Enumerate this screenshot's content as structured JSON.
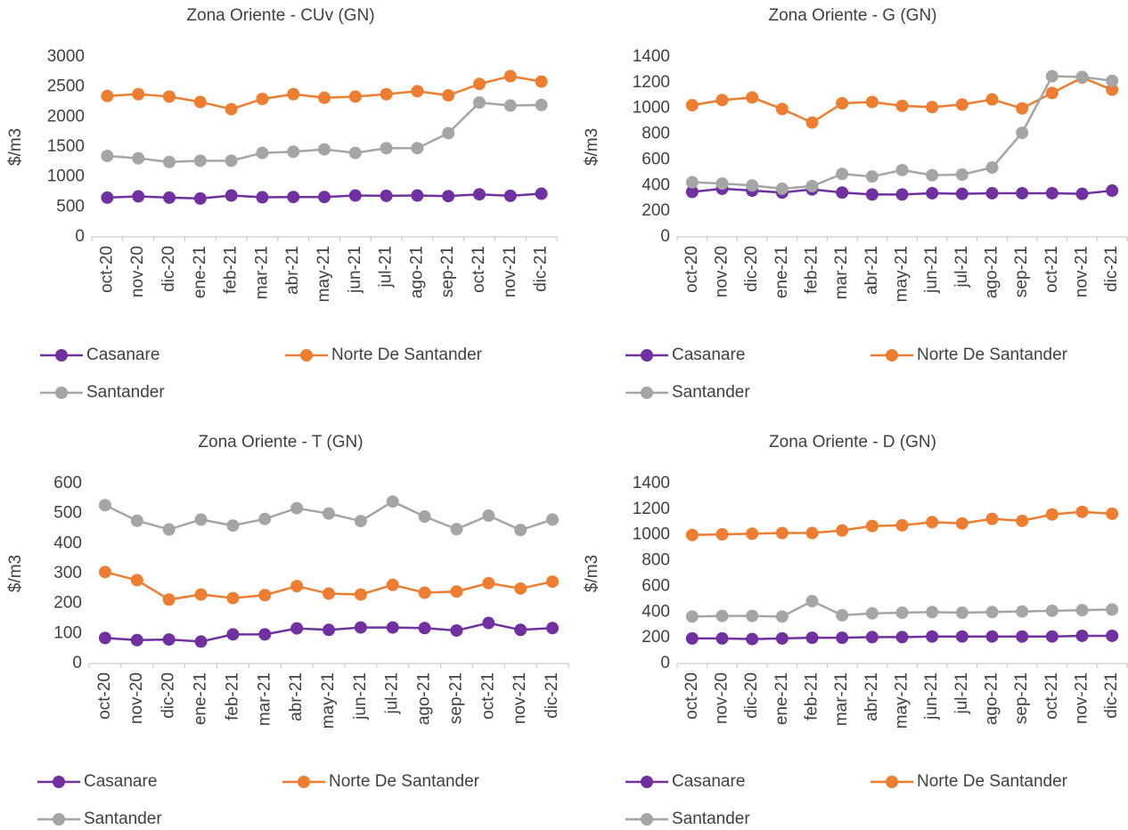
{
  "chart_data": [
    {
      "type": "line",
      "title": "Zona Oriente - CUv (GN)",
      "y_label": "$/m3",
      "categories": [
        "oct-20",
        "nov-20",
        "dic-20",
        "ene-21",
        "feb-21",
        "mar-21",
        "abr-21",
        "may-21",
        "jun-21",
        "jul-21",
        "ago-21",
        "sep-21",
        "oct-21",
        "nov-21",
        "dic-21"
      ],
      "ylim": [
        0,
        3000
      ],
      "yticks": [
        0,
        500,
        1000,
        1500,
        2000,
        2500,
        3000
      ],
      "grid": false,
      "legend": "bottom",
      "series": [
        {
          "name": "Casanare",
          "color": "#7030a0",
          "values": [
            655,
            675,
            655,
            640,
            690,
            660,
            665,
            665,
            690,
            685,
            690,
            680,
            710,
            685,
            720
          ]
        },
        {
          "name": "Norte De Santander",
          "color": "#ed7d31",
          "values": [
            2350,
            2380,
            2340,
            2250,
            2130,
            2300,
            2380,
            2320,
            2340,
            2380,
            2430,
            2360,
            2550,
            2680,
            2590
          ]
        },
        {
          "name": "Santander",
          "color": "#a5a5a5",
          "values": [
            1350,
            1310,
            1250,
            1270,
            1270,
            1400,
            1420,
            1460,
            1400,
            1480,
            1480,
            1730,
            2240,
            2190,
            2200
          ]
        }
      ]
    },
    {
      "type": "line",
      "title": "Zona Oriente - G (GN)",
      "y_label": "$/m3",
      "categories": [
        "oct-20",
        "nov-20",
        "dic-20",
        "ene-21",
        "feb-21",
        "mar-21",
        "abr-21",
        "may-21",
        "jun-21",
        "jul-21",
        "ago-21",
        "sep-21",
        "oct-21",
        "nov-21",
        "dic-21"
      ],
      "ylim": [
        0,
        1400
      ],
      "yticks": [
        0,
        200,
        400,
        600,
        800,
        1000,
        1200,
        1400
      ],
      "grid": false,
      "legend": "bottom",
      "series": [
        {
          "name": "Casanare",
          "color": "#7030a0",
          "values": [
            350,
            375,
            360,
            345,
            370,
            345,
            330,
            330,
            340,
            335,
            340,
            340,
            340,
            335,
            360
          ]
        },
        {
          "name": "Norte De Santander",
          "color": "#ed7d31",
          "values": [
            1025,
            1065,
            1085,
            995,
            890,
            1040,
            1050,
            1020,
            1010,
            1030,
            1070,
            1000,
            1120,
            1240,
            1145
          ]
        },
        {
          "name": "Santander",
          "color": "#a5a5a5",
          "values": [
            425,
            415,
            400,
            375,
            395,
            490,
            470,
            520,
            480,
            485,
            540,
            810,
            1250,
            1245,
            1215
          ]
        }
      ]
    },
    {
      "type": "line",
      "title": "Zona Oriente - T (GN)",
      "y_label": "$/m3",
      "categories": [
        "oct-20",
        "nov-20",
        "dic-20",
        "ene-21",
        "feb-21",
        "mar-21",
        "abr-21",
        "may-21",
        "jun-21",
        "jul-21",
        "ago-21",
        "sep-21",
        "oct-21",
        "nov-21",
        "dic-21"
      ],
      "ylim": [
        0,
        600
      ],
      "yticks": [
        0,
        100,
        200,
        300,
        400,
        500,
        600
      ],
      "grid": false,
      "legend": "bottom",
      "series": [
        {
          "name": "Casanare",
          "color": "#7030a0",
          "values": [
            85,
            78,
            80,
            73,
            97,
            97,
            117,
            112,
            120,
            120,
            118,
            110,
            135,
            112,
            118
          ]
        },
        {
          "name": "Norte De Santander",
          "color": "#ed7d31",
          "values": [
            305,
            278,
            213,
            230,
            218,
            228,
            258,
            233,
            230,
            262,
            236,
            240,
            268,
            250,
            273
          ]
        },
        {
          "name": "Santander",
          "color": "#a5a5a5",
          "values": [
            528,
            476,
            447,
            480,
            460,
            482,
            518,
            500,
            475,
            540,
            490,
            448,
            493,
            445,
            480
          ]
        }
      ]
    },
    {
      "type": "line",
      "title": "Zona Oriente - D (GN)",
      "y_label": "$/m3",
      "categories": [
        "oct-20",
        "nov-20",
        "dic-20",
        "ene-21",
        "feb-21",
        "mar-21",
        "abr-21",
        "may-21",
        "jun-21",
        "jul-21",
        "ago-21",
        "sep-21",
        "oct-21",
        "nov-21",
        "dic-21"
      ],
      "ylim": [
        0,
        1400
      ],
      "yticks": [
        0,
        200,
        400,
        600,
        800,
        1000,
        1200,
        1400
      ],
      "grid": false,
      "legend": "bottom",
      "series": [
        {
          "name": "Casanare",
          "color": "#7030a0",
          "values": [
            195,
            195,
            190,
            195,
            200,
            200,
            205,
            205,
            210,
            210,
            210,
            210,
            210,
            215,
            215
          ]
        },
        {
          "name": "Norte De Santander",
          "color": "#ed7d31",
          "values": [
            1000,
            1005,
            1010,
            1015,
            1015,
            1035,
            1070,
            1075,
            1100,
            1090,
            1125,
            1110,
            1160,
            1180,
            1165
          ]
        },
        {
          "name": "Santander",
          "color": "#a5a5a5",
          "values": [
            365,
            370,
            370,
            365,
            485,
            375,
            390,
            395,
            400,
            395,
            400,
            405,
            410,
            415,
            420
          ]
        }
      ]
    }
  ]
}
